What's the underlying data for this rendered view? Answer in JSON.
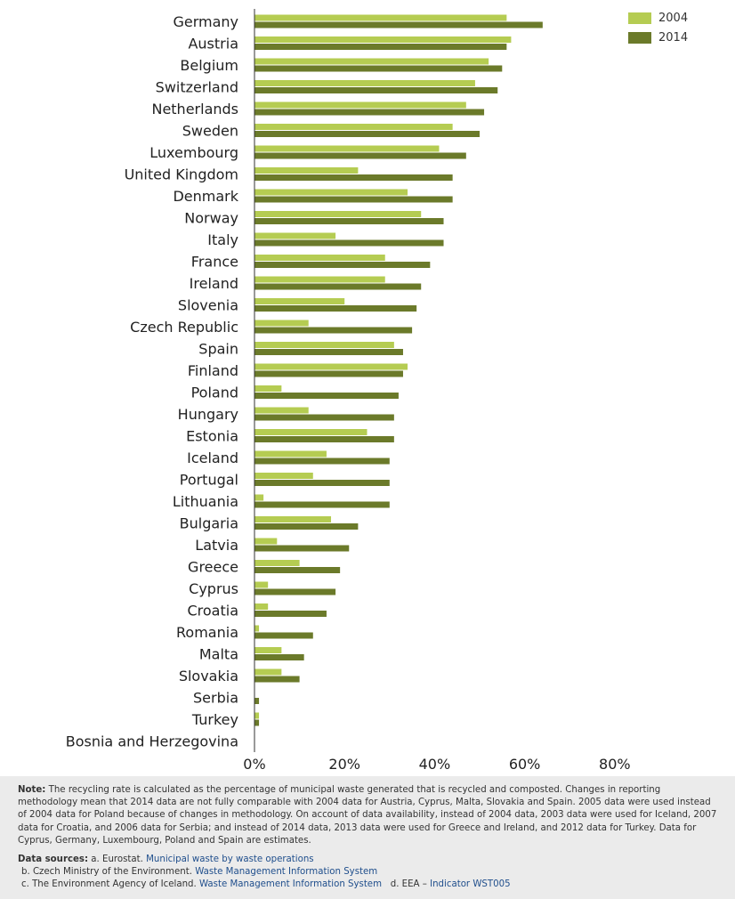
{
  "colors": {
    "y2004": "#b5cc52",
    "y2014": "#6b7a2a",
    "axis": "#333333"
  },
  "legend": {
    "items": [
      "2004",
      "2014"
    ]
  },
  "chart_data": {
    "type": "bar",
    "orientation": "horizontal",
    "categories": [
      "Germany",
      "Austria",
      "Belgium",
      "Switzerland",
      "Netherlands",
      "Sweden",
      "Luxembourg",
      "United Kingdom",
      "Denmark",
      "Norway",
      "Italy",
      "France",
      "Ireland",
      "Slovenia",
      "Czech Republic",
      "Spain",
      "Finland",
      "Poland",
      "Hungary",
      "Estonia",
      "Iceland",
      "Portugal",
      "Lithuania",
      "Bulgaria",
      "Latvia",
      "Greece",
      "Cyprus",
      "Croatia",
      "Romania",
      "Malta",
      "Slovakia",
      "Serbia",
      "Turkey",
      "Bosnia and Herzegovina"
    ],
    "series": [
      {
        "name": "2004",
        "values": [
          56,
          57,
          52,
          49,
          47,
          44,
          41,
          23,
          34,
          37,
          18,
          29,
          29,
          20,
          12,
          31,
          34,
          6,
          12,
          25,
          16,
          13,
          2,
          17,
          5,
          10,
          3,
          3,
          1,
          6,
          6,
          null,
          1,
          null
        ]
      },
      {
        "name": "2014",
        "values": [
          64,
          56,
          55,
          54,
          51,
          50,
          47,
          44,
          44,
          42,
          42,
          39,
          37,
          36,
          35,
          33,
          33,
          32,
          31,
          31,
          30,
          30,
          30,
          23,
          21,
          19,
          18,
          16,
          13,
          11,
          10,
          1,
          1,
          null
        ]
      }
    ],
    "xlim": [
      0,
      80
    ],
    "xticks": [
      "0%",
      "20%",
      "40%",
      "60%",
      "80%"
    ],
    "legend_position": "top-right",
    "grid": false
  },
  "notes": {
    "note_label": "Note:",
    "note_text": " The recycling rate is calculated as the percentage of municipal waste generated that is recycled and composted. Changes in reporting methodology mean that 2014 data are not fully comparable with 2004 data for Austria, Cyprus, Malta, Slovakia and Spain. 2005 data were used instead of 2004 data for Poland because of changes in methodology. On account of data availability, instead of 2004 data, 2003 data were used for Iceland, 2007 data for Croatia, and 2006 data for Serbia; and instead of 2014 data, 2013 data were used for Greece and Ireland, and 2012 data for Turkey. Data for Cyprus, Germany, Luxembourg, Poland and Spain are estimates.",
    "sources_label": "Data sources:",
    "src_a_prefix": " a. Eurostat. ",
    "src_a_link": "Municipal waste by waste operations",
    "src_b_prefix": "b. Czech Ministry of the Environment. ",
    "src_b_link": "Waste Management Information System",
    "src_c_prefix": "c. The Environment Agency of Iceland. ",
    "src_c_link": "Waste Management Information System",
    "src_d_prefix": "d. EEA – ",
    "src_d_link": "Indicator WST005"
  }
}
